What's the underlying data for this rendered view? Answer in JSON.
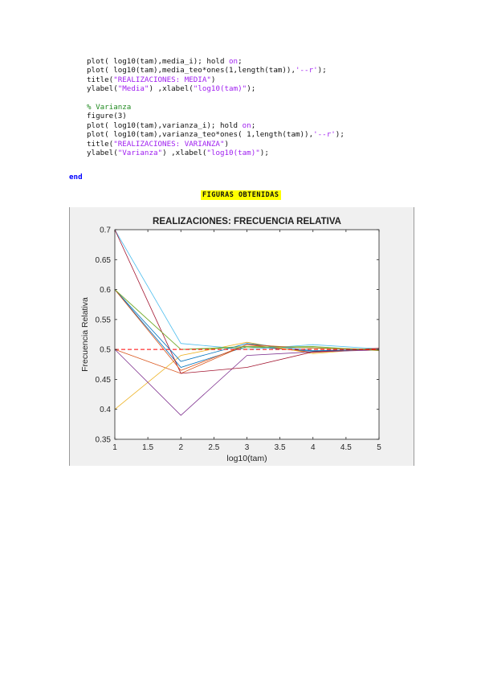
{
  "code": {
    "lines": [
      [
        {
          "t": "plot( log10(tam),media_i); hold ",
          "c": "plain"
        },
        {
          "t": "on",
          "c": "str"
        },
        {
          "t": ";",
          "c": "plain"
        }
      ],
      [
        {
          "t": "plot( log10(tam),media_teo*ones(1,length(tam)),",
          "c": "plain"
        },
        {
          "t": "'--r'",
          "c": "str"
        },
        {
          "t": ");",
          "c": "plain"
        }
      ],
      [
        {
          "t": "title(",
          "c": "plain"
        },
        {
          "t": "\"REALIZACIONES: MEDIA\"",
          "c": "str"
        },
        {
          "t": ")",
          "c": "plain"
        }
      ],
      [
        {
          "t": "ylabel(",
          "c": "plain"
        },
        {
          "t": "\"Media\"",
          "c": "str"
        },
        {
          "t": ") ,xlabel(",
          "c": "plain"
        },
        {
          "t": "\"log10(tam)\"",
          "c": "str"
        },
        {
          "t": ");",
          "c": "plain"
        }
      ],
      [],
      [
        {
          "t": "% Varianza",
          "c": "cmt"
        }
      ],
      [
        {
          "t": "figure(3)",
          "c": "plain"
        }
      ],
      [
        {
          "t": "plot( log10(tam),varianza_i); hold ",
          "c": "plain"
        },
        {
          "t": "on",
          "c": "str"
        },
        {
          "t": ";",
          "c": "plain"
        }
      ],
      [
        {
          "t": "plot( log10(tam),varianza_teo*ones( 1,length(tam)),",
          "c": "plain"
        },
        {
          "t": "'--r'",
          "c": "str"
        },
        {
          "t": ");",
          "c": "plain"
        }
      ],
      [
        {
          "t": "title(",
          "c": "plain"
        },
        {
          "t": "\"REALIZACIONES: VARIANZA\"",
          "c": "str"
        },
        {
          "t": ")",
          "c": "plain"
        }
      ],
      [
        {
          "t": "ylabel(",
          "c": "plain"
        },
        {
          "t": "\"Varianza\"",
          "c": "str"
        },
        {
          "t": ") ,xlabel(",
          "c": "plain"
        },
        {
          "t": "\"log10(tam)\"",
          "c": "str"
        },
        {
          "t": ");",
          "c": "plain"
        }
      ]
    ],
    "end_keyword": "end"
  },
  "section_heading": "FIGURAS OBTENIDAS",
  "chart_data": {
    "type": "line",
    "title": "REALIZACIONES: FRECUENCIA RELATIVA",
    "xlabel": "log10(tam)",
    "ylabel": "Frecuencia Relativa",
    "xlim": [
      1,
      5
    ],
    "ylim": [
      0.35,
      0.7
    ],
    "xticks": [
      "1",
      "1.5",
      "2",
      "2.5",
      "3",
      "3.5",
      "4",
      "4.5",
      "5"
    ],
    "yticks": [
      "0.35",
      "0.4",
      "0.45",
      "0.5",
      "0.55",
      "0.6",
      "0.65",
      "0.7"
    ],
    "grid": false,
    "x": [
      1,
      2,
      3,
      4,
      5
    ],
    "series": [
      {
        "color": "#0072bd",
        "values": [
          0.6,
          0.47,
          0.505,
          0.497,
          0.5
        ]
      },
      {
        "color": "#d95319",
        "values": [
          0.5,
          0.46,
          0.508,
          0.495,
          0.501
        ]
      },
      {
        "color": "#edb120",
        "values": [
          0.4,
          0.49,
          0.512,
          0.493,
          0.502
        ]
      },
      {
        "color": "#7e2f8e",
        "values": [
          0.5,
          0.39,
          0.49,
          0.496,
          0.499
        ]
      },
      {
        "color": "#77ac30",
        "values": [
          0.6,
          0.5,
          0.503,
          0.505,
          0.498
        ]
      },
      {
        "color": "#4dbeee",
        "values": [
          0.7,
          0.51,
          0.5,
          0.508,
          0.501
        ]
      },
      {
        "color": "#a2142f",
        "values": [
          0.7,
          0.46,
          0.47,
          0.496,
          0.502
        ]
      },
      {
        "color": "#0072bd",
        "values": [
          0.6,
          0.48,
          0.51,
          0.498,
          0.5
        ]
      },
      {
        "color": "#d95319",
        "values": [
          0.6,
          0.465,
          0.508,
          0.502,
          0.499
        ]
      },
      {
        "color": "#77ac30",
        "values": [
          0.6,
          0.5,
          0.505,
          0.503,
          0.5
        ]
      }
    ],
    "reference_line": {
      "value": 0.5,
      "color": "#ff0000",
      "style": "dashed"
    }
  }
}
